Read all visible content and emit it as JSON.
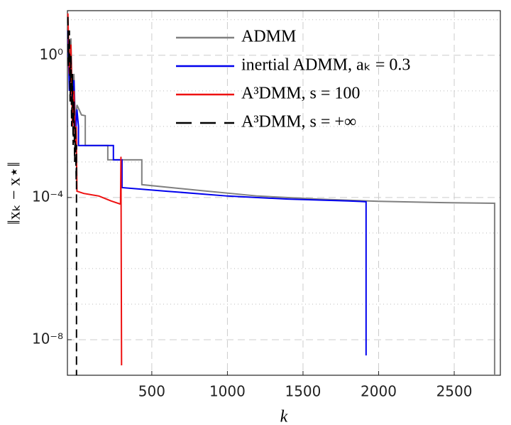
{
  "chart_data": {
    "type": "line",
    "xlabel": "k",
    "ylabel": "‖xₖ − x⋆‖",
    "xlim": [
      -58,
      2805
    ],
    "xticks": [
      500,
      1000,
      1500,
      2000,
      2500
    ],
    "ylim": [
      1e-09,
      18
    ],
    "yticks": [
      {
        "value": 1,
        "label": "10⁰"
      },
      {
        "value": 0.0001,
        "label": "10⁻⁴"
      },
      {
        "value": 1e-08,
        "label": "10⁻⁸"
      }
    ],
    "y_minor_grid": [
      10,
      0.1,
      0.01,
      0.001,
      1e-05,
      1e-06,
      1e-07,
      1e-09
    ],
    "log_y": true,
    "grid": true,
    "legend": "top-right",
    "series": [
      {
        "name": "ADMM",
        "color": "#808080",
        "linestyle": "solid",
        "x": [
          -55,
          -45,
          -35,
          -25,
          -15,
          -5,
          5,
          35,
          60,
          60,
          209,
          209,
          434,
          434,
          800,
          1200,
          1600,
          2000,
          2400,
          2767,
          2767
        ],
        "values": [
          8,
          0.5,
          3,
          0.05,
          0.3,
          0.01,
          0.04,
          0.021,
          0.02,
          0.0029,
          0.0029,
          0.00115,
          0.00115,
          0.00023,
          0.00016,
          0.00011,
          9e-05,
          7.8e-05,
          7.2e-05,
          6.9e-05,
          1e-09
        ]
      },
      {
        "name": "inertial ADMM, aₖ = 0.3",
        "color": "#0000ee",
        "linestyle": "solid",
        "x": [
          -55,
          -45,
          -35,
          -25,
          -15,
          -5,
          5,
          15,
          15,
          246,
          246,
          303,
          303,
          600,
          1000,
          1400,
          1800,
          1917,
          1917
        ],
        "values": [
          5,
          0.1,
          1,
          0.02,
          0.2,
          0.005,
          0.03,
          0.01,
          0.0029,
          0.0029,
          0.00115,
          0.00115,
          0.00019,
          0.00015,
          0.00011,
          9e-05,
          8e-05,
          7.6e-05,
          3.6e-09
        ]
      },
      {
        "name": "A³DMM, s = 100",
        "color": "#ee1111",
        "linestyle": "solid",
        "x": [
          -55,
          -45,
          -35,
          -25,
          -15,
          -5,
          0,
          5,
          50,
          150,
          230,
          293,
          296,
          300
        ],
        "values": [
          15,
          0.3,
          2,
          0.01,
          0.1,
          0.003,
          0.01,
          0.00015,
          0.00013,
          0.00011,
          8e-05,
          6.5e-05,
          0.0014,
          1.9e-09
        ]
      },
      {
        "name": "A³DMM, s = +∞",
        "color": "#000000",
        "linestyle": "dashed",
        "x": [
          -55,
          -50,
          -45,
          -40,
          -35,
          -30,
          -25,
          -20,
          -15,
          -10,
          -5,
          0,
          2,
          2
        ],
        "values": [
          12,
          0.5,
          5,
          0.05,
          1,
          0.01,
          0.3,
          0.003,
          0.05,
          0.001,
          0.01,
          0.0003,
          0.003,
          1e-09
        ]
      }
    ]
  }
}
